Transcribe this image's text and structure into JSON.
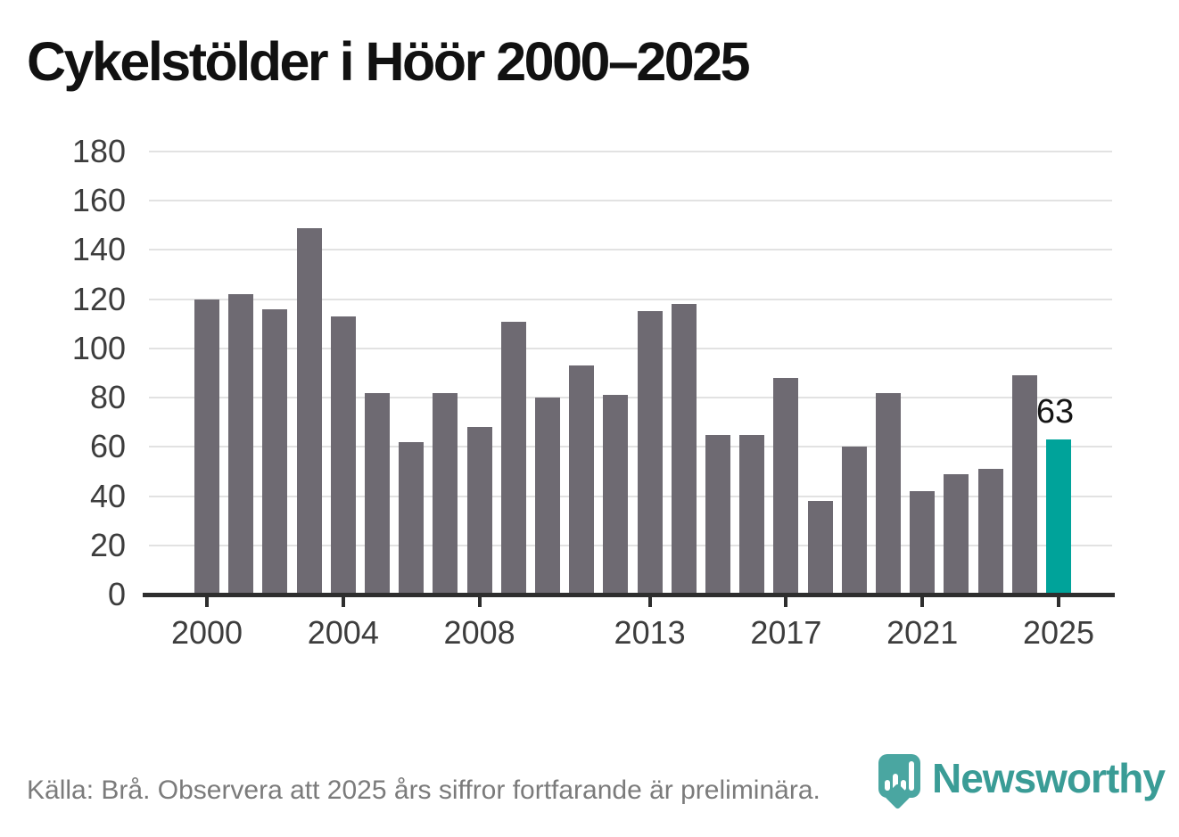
{
  "title": "Cykelstölder i Höör 2000–2025",
  "chart_data": {
    "type": "bar",
    "title": "Cykelstölder i Höör 2000–2025",
    "x": [
      2000,
      2001,
      2002,
      2003,
      2004,
      2005,
      2006,
      2007,
      2008,
      2009,
      2010,
      2011,
      2012,
      2013,
      2014,
      2015,
      2016,
      2017,
      2018,
      2019,
      2020,
      2021,
      2022,
      2023,
      2024,
      2025
    ],
    "values": [
      120,
      122,
      116,
      149,
      113,
      82,
      62,
      82,
      68,
      111,
      80,
      93,
      81,
      115,
      118,
      65,
      65,
      88,
      38,
      60,
      82,
      42,
      49,
      51,
      89,
      63
    ],
    "ylim": [
      0,
      180
    ],
    "yticks": [
      0,
      20,
      40,
      60,
      80,
      100,
      120,
      140,
      160,
      180
    ],
    "xtick_labels": [
      "2000",
      "2004",
      "2008",
      "2013",
      "2017",
      "2021",
      "2025"
    ],
    "xtick_years": [
      2000,
      2004,
      2008,
      2013,
      2017,
      2021,
      2025
    ],
    "grid": "horizontal",
    "legend": "none",
    "highlight": {
      "year": 2025,
      "value": 63,
      "label": "63"
    }
  },
  "footer": {
    "source": "Källa: Brå. Observera att 2025 års siffror fortfarande är preliminära.",
    "logo_text": "Newsworthy"
  },
  "colors": {
    "title": "#111111",
    "bar": "#6e6a72",
    "accent": "#00a39a",
    "grid": "#e2e2e2",
    "axis": "#2e2e2e",
    "ticklabel": "#3d3d3d",
    "muted": "#7b7b7b",
    "badge": "#4aa6a1",
    "logoteal": "#3a9c96"
  }
}
